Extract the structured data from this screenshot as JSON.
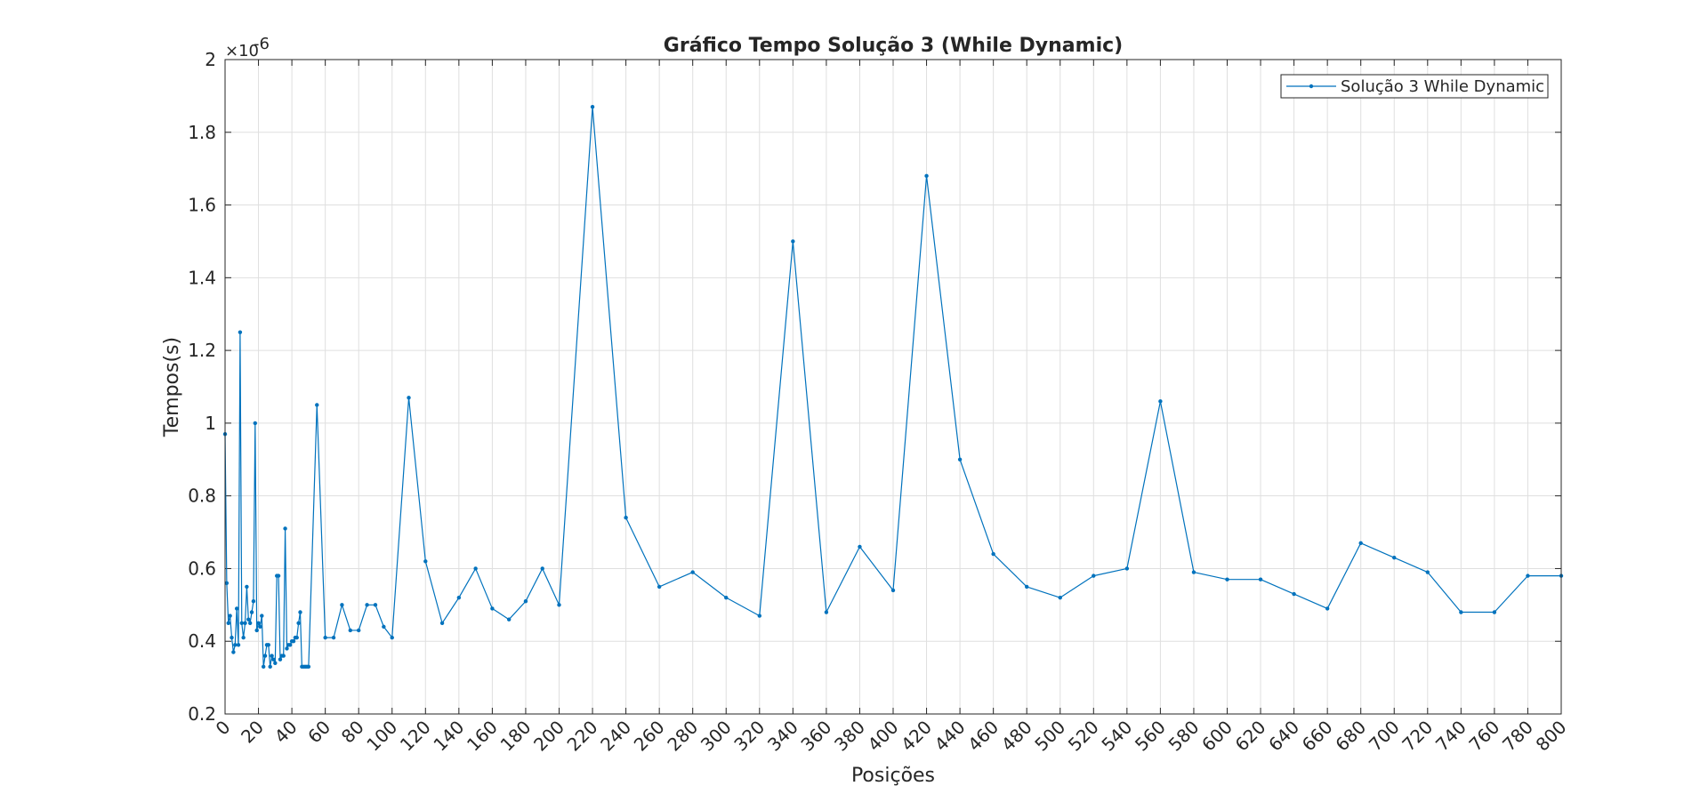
{
  "chart_data": {
    "type": "line",
    "title": "Gráfico Tempo Solução 3 (While Dynamic)",
    "xlabel": "Posições",
    "ylabel": "Tempos(s)",
    "y_exponent_label": "×10",
    "y_exponent_power": "-6",
    "xlim": [
      0,
      800
    ],
    "ylim": [
      0.2,
      2
    ],
    "x_ticks": [
      0,
      20,
      40,
      60,
      80,
      100,
      120,
      140,
      160,
      180,
      200,
      220,
      240,
      260,
      280,
      300,
      320,
      340,
      360,
      380,
      400,
      420,
      440,
      460,
      480,
      500,
      520,
      540,
      560,
      580,
      600,
      620,
      640,
      660,
      680,
      700,
      720,
      740,
      760,
      780,
      800
    ],
    "y_ticks": [
      0.2,
      0.4,
      0.6,
      0.8,
      1,
      1.2,
      1.4,
      1.6,
      1.8,
      2
    ],
    "grid": true,
    "legend_position": "top-right",
    "series": [
      {
        "name": "Solução 3 While Dynamic",
        "color": "#0072BD",
        "marker": "dot",
        "x": [
          0,
          1,
          2,
          3,
          4,
          5,
          6,
          7,
          8,
          9,
          10,
          11,
          12,
          13,
          14,
          15,
          16,
          17,
          18,
          19,
          20,
          21,
          22,
          23,
          24,
          25,
          26,
          27,
          28,
          29,
          30,
          31,
          32,
          33,
          34,
          35,
          36,
          37,
          38,
          39,
          40,
          41,
          42,
          43,
          44,
          45,
          46,
          47,
          48,
          49,
          50,
          55,
          60,
          65,
          70,
          75,
          80,
          85,
          90,
          95,
          100,
          110,
          120,
          130,
          140,
          150,
          160,
          170,
          180,
          190,
          200,
          220,
          240,
          260,
          280,
          300,
          320,
          340,
          360,
          380,
          400,
          420,
          440,
          460,
          480,
          500,
          520,
          540,
          560,
          580,
          600,
          620,
          640,
          660,
          680,
          700,
          720,
          740,
          760,
          780,
          800
        ],
        "values": [
          0.97,
          0.56,
          0.45,
          0.47,
          0.41,
          0.37,
          0.39,
          0.49,
          0.39,
          1.25,
          0.45,
          0.41,
          0.45,
          0.55,
          0.46,
          0.45,
          0.48,
          0.51,
          1.0,
          0.43,
          0.45,
          0.44,
          0.47,
          0.33,
          0.36,
          0.39,
          0.39,
          0.33,
          0.36,
          0.35,
          0.34,
          0.58,
          0.58,
          0.35,
          0.36,
          0.36,
          0.71,
          0.38,
          0.39,
          0.39,
          0.4,
          0.4,
          0.41,
          0.41,
          0.45,
          0.48,
          0.33,
          0.33,
          0.33,
          0.33,
          0.33,
          1.05,
          0.41,
          0.41,
          0.5,
          0.43,
          0.43,
          0.5,
          0.5,
          0.44,
          0.41,
          1.07,
          0.62,
          0.45,
          0.52,
          0.6,
          0.49,
          0.46,
          0.51,
          0.6,
          0.5,
          1.87,
          0.74,
          0.55,
          0.59,
          0.52,
          0.47,
          1.5,
          0.48,
          0.66,
          0.54,
          1.68,
          0.9,
          0.64,
          0.55,
          0.52,
          0.58,
          0.6,
          1.06,
          0.59,
          0.57,
          0.57,
          0.53,
          0.49,
          0.67,
          0.63,
          0.59,
          0.48,
          0.48,
          0.58,
          0.58
        ]
      }
    ]
  }
}
